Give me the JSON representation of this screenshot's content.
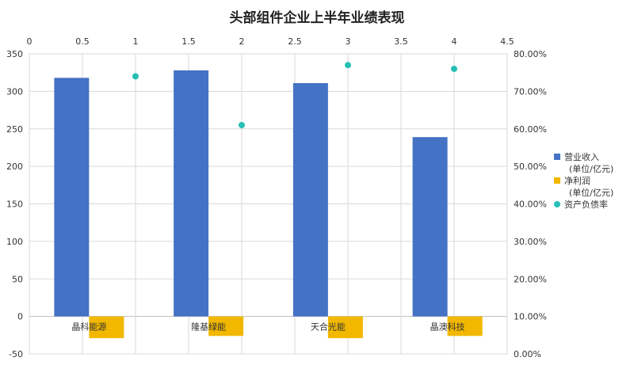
{
  "chart_data": {
    "type": "bar",
    "title": "头部组件企业上半年业绩表现",
    "categories": [
      "晶科能源",
      "隆基绿能",
      "天合光能",
      "晶澳科技"
    ],
    "series": [
      {
        "name": "营业收入",
        "name_unit": "(单位/亿元)",
        "kind": "bar",
        "axis": "primary",
        "color": "#4472C4",
        "values": [
          318,
          328,
          311,
          239
        ]
      },
      {
        "name": "净利润",
        "name_unit": "(单位/亿元)",
        "kind": "bar",
        "axis": "primary",
        "color": "#F2B800",
        "values": [
          -29,
          -26,
          -29,
          -26
        ]
      },
      {
        "name": "资产负债率",
        "kind": "scatter",
        "axis": "secondary",
        "color": "#26BFB5",
        "x": [
          1,
          2,
          3,
          4
        ],
        "values": [
          0.74,
          0.61,
          0.77,
          0.76
        ]
      }
    ],
    "y_primary": {
      "ticks": [
        "350",
        "300",
        "250",
        "200",
        "150",
        "100",
        "50",
        "0",
        "-50"
      ],
      "range": [
        -50,
        350
      ]
    },
    "y_secondary": {
      "ticks": [
        "80.00%",
        "70.00%",
        "60.00%",
        "50.00%",
        "40.00%",
        "30.00%",
        "20.00%",
        "10.00%",
        "0.00%"
      ],
      "range": [
        0,
        0.8
      ]
    },
    "x_secondary": {
      "ticks": [
        "0",
        "0.5",
        "1",
        "1.5",
        "2",
        "2.5",
        "3",
        "3.5",
        "4",
        "4.5"
      ],
      "range": [
        0,
        4.5
      ]
    },
    "grid": true,
    "legend_position": "right"
  }
}
